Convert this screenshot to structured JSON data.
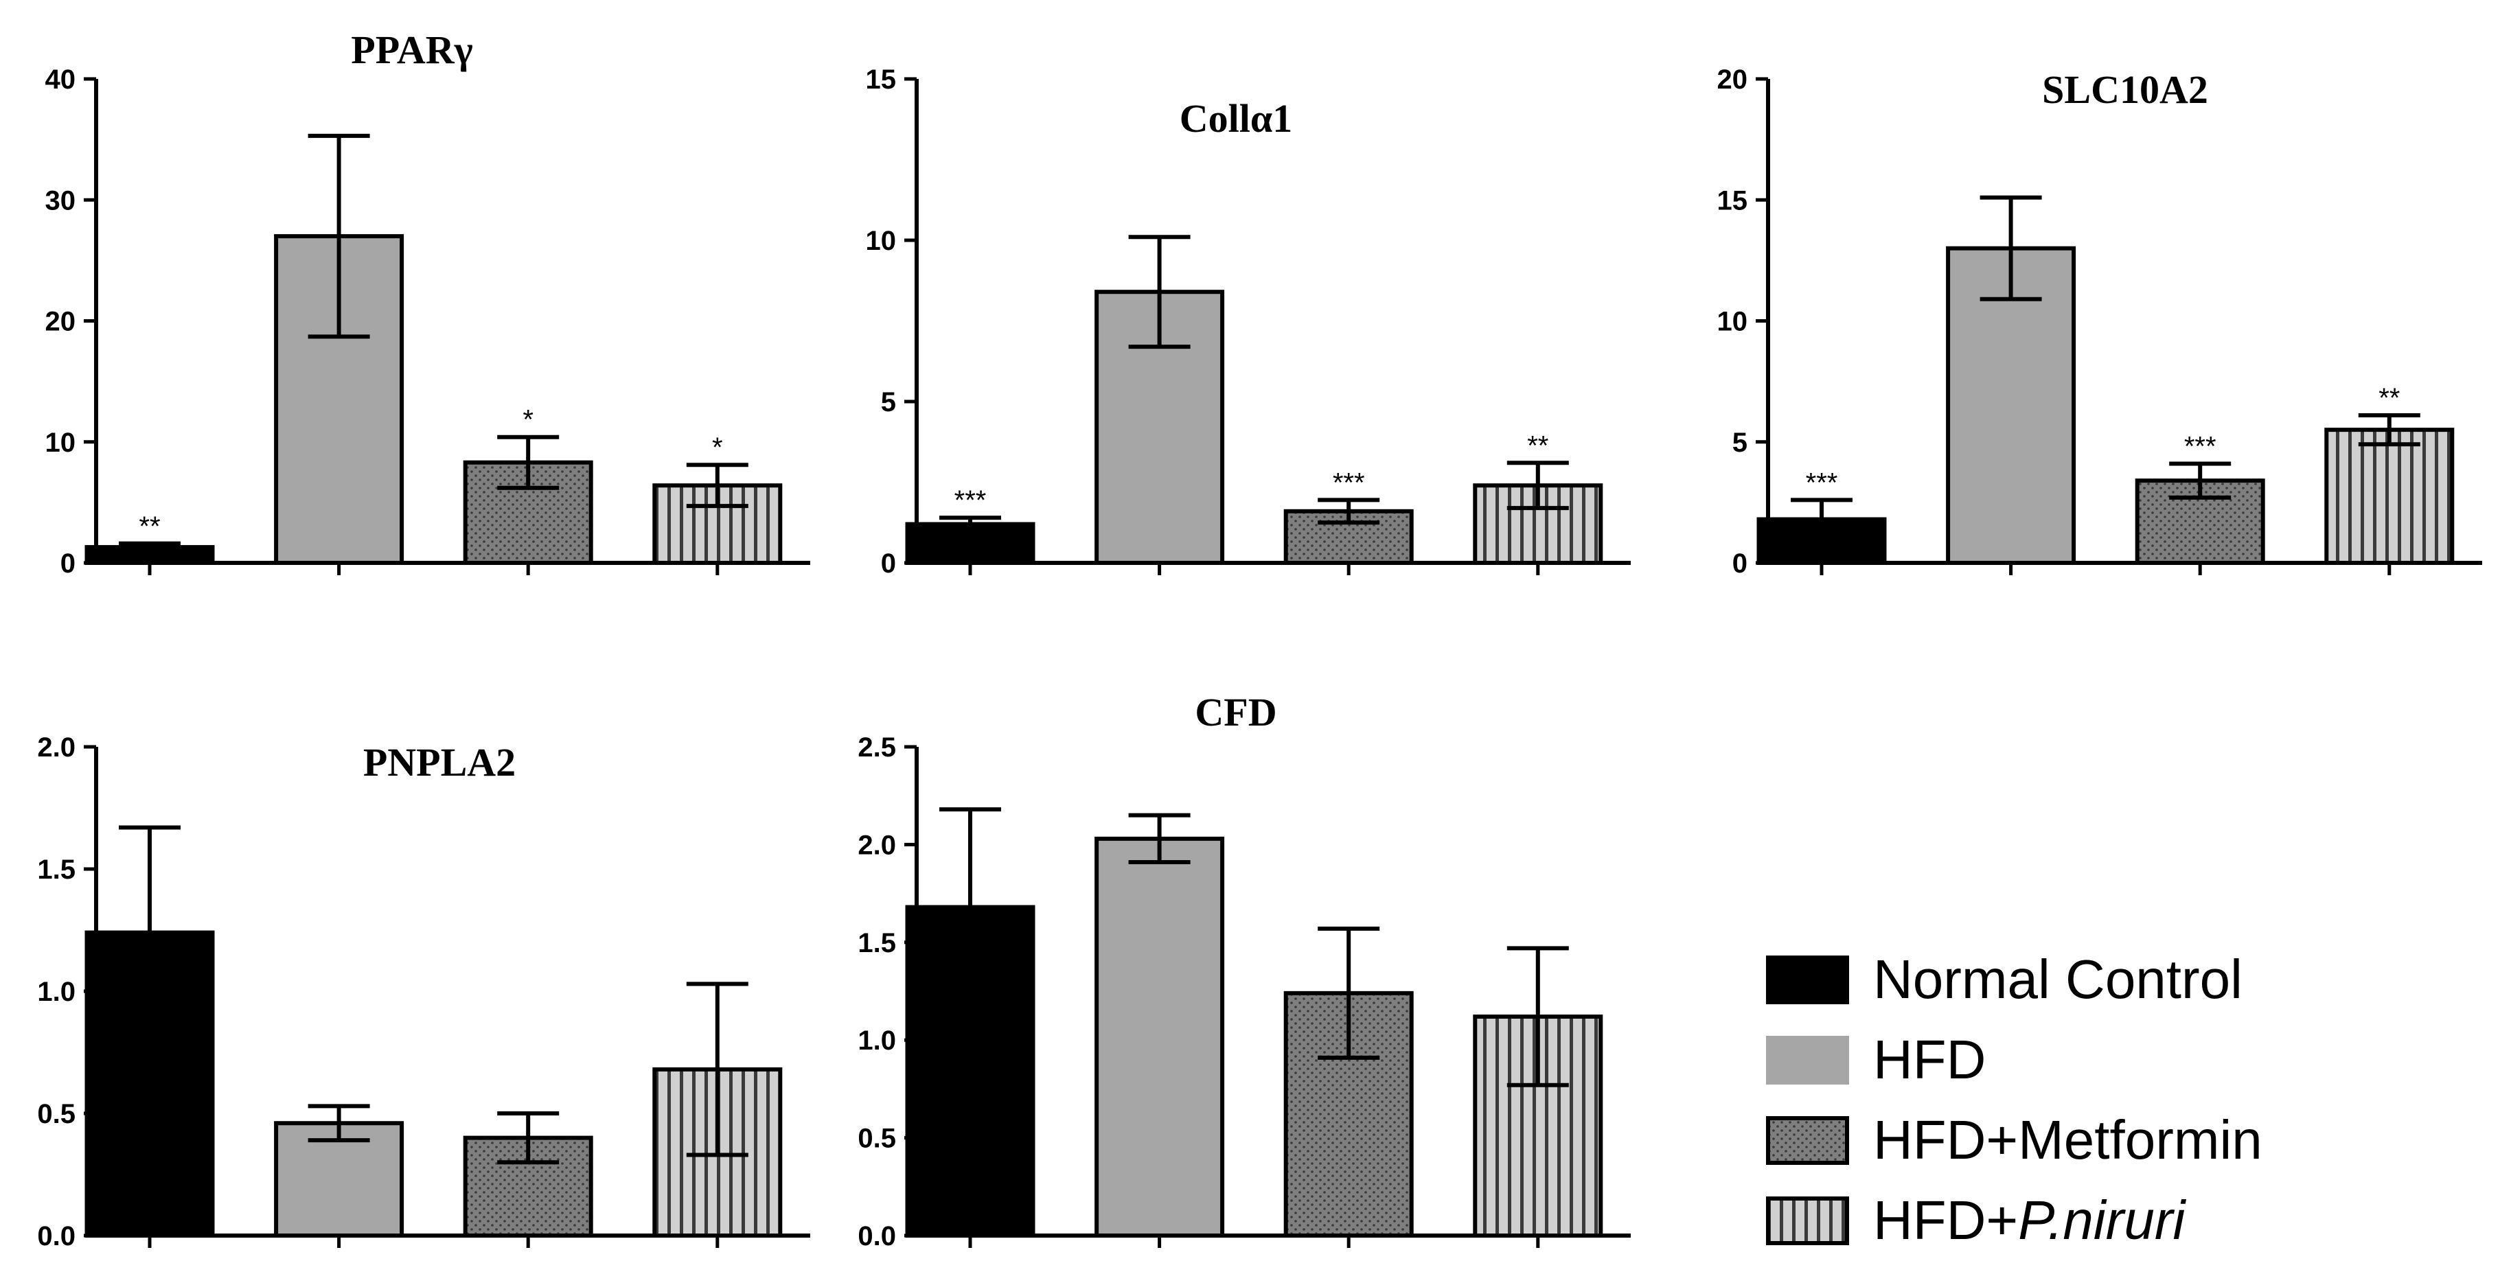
{
  "colors": {
    "normal": "#000000",
    "hfd": "#a6a6a6",
    "metformin": "#7f7f7f",
    "niruri": "#d0d0d0"
  },
  "legend": [
    {
      "key": "normal",
      "label": "Normal Control",
      "italic_suffix": ""
    },
    {
      "key": "hfd",
      "label": "HFD",
      "italic_suffix": ""
    },
    {
      "key": "metformin",
      "label": "HFD+Metformin",
      "italic_suffix": ""
    },
    {
      "key": "niruri",
      "label": "HFD+",
      "italic_suffix": "P.niruri"
    }
  ],
  "chart_data": [
    {
      "type": "bar",
      "title": "PPARγ",
      "categories": [
        "Normal Control",
        "HFD",
        "HFD+Metformin",
        "HFD+P.niruri"
      ],
      "values": [
        1.3,
        27,
        8.3,
        6.4
      ],
      "errors": [
        0.3,
        8.3,
        2.1,
        1.7
      ],
      "significance": [
        "**",
        "",
        "*",
        "*"
      ],
      "ylim": [
        0,
        40
      ],
      "yticks": [
        "0",
        "10",
        "20",
        "30",
        "40"
      ],
      "ytick_values": [
        0,
        10,
        20,
        30,
        40
      ]
    },
    {
      "type": "bar",
      "title": "Collα1",
      "categories": [
        "Normal Control",
        "HFD",
        "HFD+Metformin",
        "HFD+P.niruri"
      ],
      "values": [
        1.2,
        8.4,
        1.6,
        2.4
      ],
      "errors": [
        0.2,
        1.7,
        0.35,
        0.7
      ],
      "significance": [
        "***",
        "",
        "***",
        "**"
      ],
      "ylim": [
        0,
        15
      ],
      "yticks": [
        "0",
        "5",
        "10",
        "15"
      ],
      "ytick_values": [
        0,
        5,
        10,
        15
      ]
    },
    {
      "type": "bar",
      "title": "SLC10A2",
      "categories": [
        "Normal Control",
        "HFD",
        "HFD+Metformin",
        "HFD+P.niruri"
      ],
      "values": [
        1.8,
        13,
        3.4,
        5.5
      ],
      "errors": [
        0.8,
        2.1,
        0.7,
        0.6
      ],
      "significance": [
        "***",
        "",
        "***",
        "**"
      ],
      "ylim": [
        0,
        20
      ],
      "yticks": [
        "0",
        "5",
        "10",
        "15",
        "20"
      ],
      "ytick_values": [
        0,
        5,
        10,
        15,
        20
      ]
    },
    {
      "type": "bar",
      "title": "PNPLA2",
      "categories": [
        "Normal Control",
        "HFD",
        "HFD+Metformin",
        "HFD+P.niruri"
      ],
      "values": [
        1.24,
        0.46,
        0.4,
        0.68
      ],
      "errors": [
        0.43,
        0.07,
        0.1,
        0.35
      ],
      "significance": [
        "",
        "",
        "",
        ""
      ],
      "ylim": [
        0,
        2
      ],
      "yticks": [
        "0.0",
        "0.5",
        "1.0",
        "1.5",
        "2.0"
      ],
      "ytick_values": [
        0,
        0.5,
        1,
        1.5,
        2
      ]
    },
    {
      "type": "bar",
      "title": "CFD",
      "categories": [
        "Normal Control",
        "HFD",
        "HFD+Metformin",
        "HFD+P.niruri"
      ],
      "values": [
        1.68,
        2.03,
        1.24,
        1.12
      ],
      "errors": [
        0.5,
        0.12,
        0.33,
        0.35
      ],
      "significance": [
        "",
        "",
        "",
        ""
      ],
      "ylim": [
        0,
        2.5
      ],
      "yticks": [
        "0.0",
        "0.5",
        "1.0",
        "1.5",
        "2.0",
        "2.5"
      ],
      "ytick_values": [
        0,
        0.5,
        1,
        1.5,
        2,
        2.5
      ]
    }
  ]
}
